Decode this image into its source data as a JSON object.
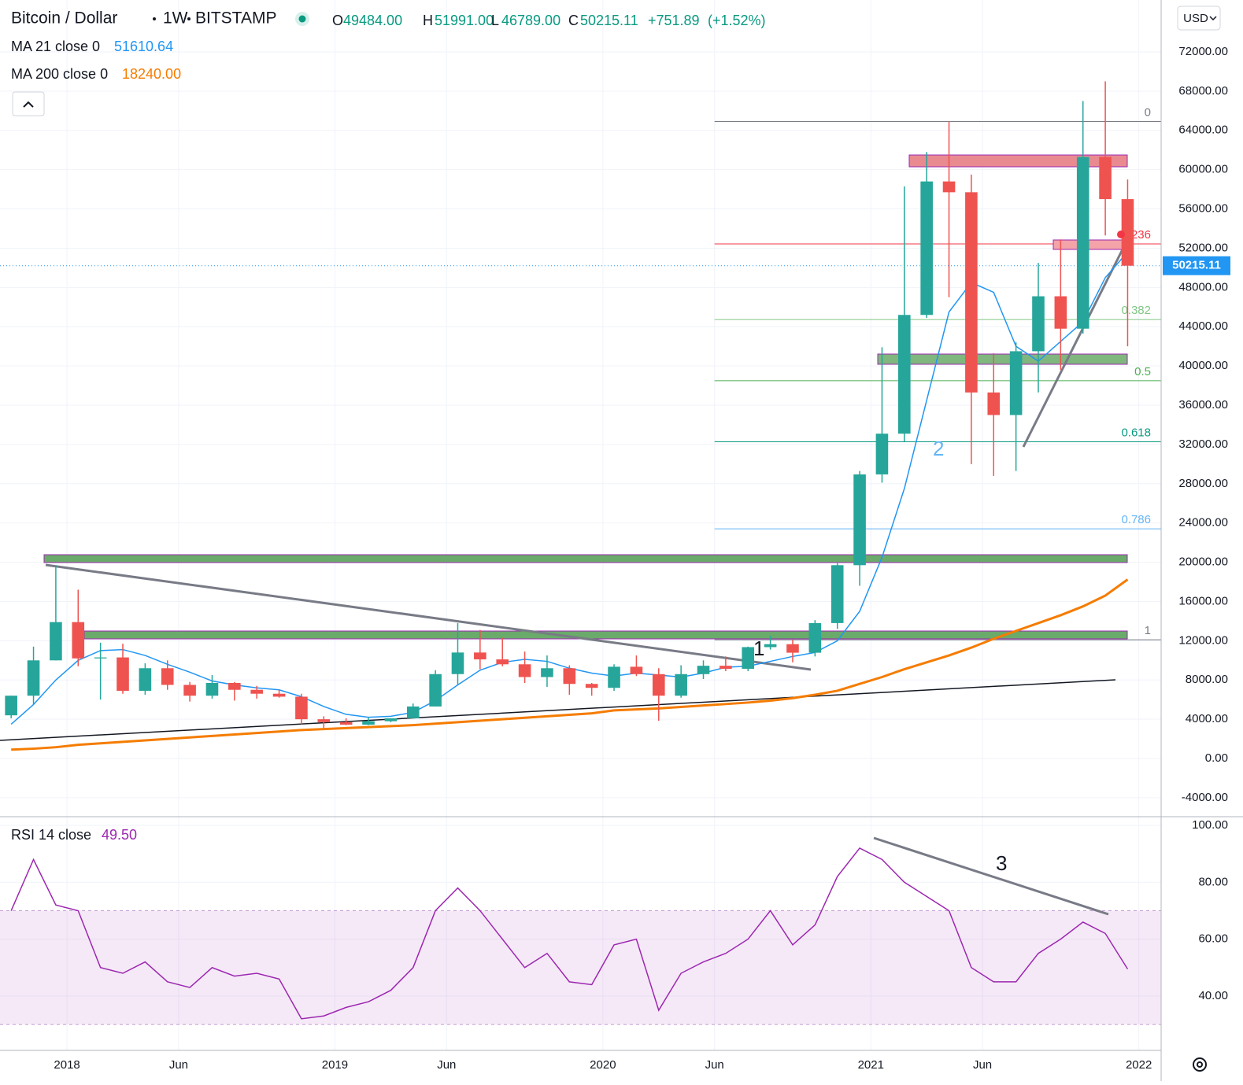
{
  "chart_data": {
    "type": "candlestick",
    "header": {
      "symbol": "Bitcoin / Dollar",
      "interval": "1W",
      "exchange": "BITSTAMP",
      "ohlc": [
        {
          "key": "O",
          "value": {
            "value": 49484,
            "label": "49484.00"
          }
        },
        {
          "key": "H",
          "value": {
            "value": 51991,
            "label": "51991.00"
          }
        },
        {
          "key": "L",
          "value": {
            "value": 46789,
            "label": "46789.00"
          }
        },
        {
          "key": "C",
          "value": {
            "value": 50215.11,
            "label": "50215.11"
          }
        }
      ],
      "change": {
        "value": 751.89,
        "label": "+751.89"
      },
      "change_pct": {
        "value": 1.52,
        "label": "(+1.52%)"
      }
    },
    "currency": "USD",
    "xlim": [
      "2017-10",
      "2022-02"
    ],
    "xticks": [
      {
        "value": "2018-01",
        "label": "2018"
      },
      {
        "value": "2018-06",
        "label": "Jun"
      },
      {
        "value": "2019-01",
        "label": "2019"
      },
      {
        "value": "2019-06",
        "label": "Jun"
      },
      {
        "value": "2020-01",
        "label": "2020"
      },
      {
        "value": "2020-06",
        "label": "Jun"
      },
      {
        "value": "2021-01",
        "label": "2021"
      },
      {
        "value": "2021-06",
        "label": "Jun"
      },
      {
        "value": "2022-01",
        "label": "2022"
      }
    ],
    "ylim": [
      -5930,
      77290
    ],
    "yticks": [
      {
        "value": -4000,
        "label": "-4000.00"
      },
      {
        "value": 0,
        "label": "0.00"
      },
      {
        "value": 4000,
        "label": "4000.00"
      },
      {
        "value": 8000,
        "label": "8000.00"
      },
      {
        "value": 12000,
        "label": "12000.00"
      },
      {
        "value": 16000,
        "label": "16000.00"
      },
      {
        "value": 20000,
        "label": "20000.00"
      },
      {
        "value": 24000,
        "label": "24000.00"
      },
      {
        "value": 28000,
        "label": "28000.00"
      },
      {
        "value": 32000,
        "label": "32000.00"
      },
      {
        "value": 36000,
        "label": "36000.00"
      },
      {
        "value": 40000,
        "label": "40000.00"
      },
      {
        "value": 44000,
        "label": "44000.00"
      },
      {
        "value": 48000,
        "label": "48000.00"
      },
      {
        "value": 52000,
        "label": "52000.00"
      },
      {
        "value": 56000,
        "label": "56000.00"
      },
      {
        "value": 60000,
        "label": "60000.00"
      },
      {
        "value": 64000,
        "label": "64000.00"
      },
      {
        "value": 68000,
        "label": "68000.00"
      },
      {
        "value": 72000,
        "label": "72000.00"
      }
    ],
    "grid": true,
    "up_color": "#26a69a",
    "down_color": "#ef5350",
    "candles": {
      "x": [
        "2017-10",
        "2017-11",
        "2017-12",
        "2018-01",
        "2018-02",
        "2018-03",
        "2018-04",
        "2018-05",
        "2018-06",
        "2018-07",
        "2018-08",
        "2018-09",
        "2018-10",
        "2018-11",
        "2018-12",
        "2019-01",
        "2019-02",
        "2019-03",
        "2019-04",
        "2019-05",
        "2019-06",
        "2019-07",
        "2019-08",
        "2019-09",
        "2019-10",
        "2019-11",
        "2019-12",
        "2020-01",
        "2020-02",
        "2020-03",
        "2020-04",
        "2020-05",
        "2020-06",
        "2020-07",
        "2020-08",
        "2020-09",
        "2020-10",
        "2020-11",
        "2020-12",
        "2021-01",
        "2021-02",
        "2021-03",
        "2021-04",
        "2021-05",
        "2021-06",
        "2021-07",
        "2021-08",
        "2021-09",
        "2021-10",
        "2021-11",
        "2021-12"
      ],
      "open": [
        4400,
        6400,
        10000,
        13900,
        10200,
        10300,
        6900,
        9200,
        7500,
        6400,
        7700,
        7000,
        6600,
        6300,
        4000,
        3700,
        3450,
        3800,
        4100,
        5300,
        8600,
        10800,
        10100,
        9600,
        8300,
        9200,
        7600,
        7200,
        9350,
        8600,
        6400,
        8600,
        9450,
        9140,
        11350,
        11650,
        10780,
        13800,
        19700,
        28950,
        33100,
        45200,
        58800,
        57700,
        37300,
        35000,
        41500,
        47100,
        43800,
        61300,
        57000
      ],
      "high": [
        6400,
        11400,
        19700,
        17200,
        11800,
        11700,
        9700,
        10000,
        7800,
        8500,
        7800,
        7400,
        7000,
        6600,
        4300,
        4100,
        4200,
        4100,
        5600,
        9000,
        13800,
        13100,
        12300,
        10900,
        10500,
        9500,
        7700,
        9600,
        10500,
        9200,
        9500,
        10000,
        10400,
        11400,
        12500,
        12100,
        14100,
        19900,
        29300,
        41900,
        58300,
        61800,
        64900,
        59500,
        41300,
        42400,
        50500,
        52900,
        67000,
        69000,
        59000
      ],
      "low": [
        4100,
        5500,
        10000,
        9400,
        6000,
        6600,
        6500,
        7000,
        5800,
        6100,
        5900,
        6100,
        6200,
        3500,
        3100,
        3400,
        3400,
        3700,
        4100,
        5300,
        7500,
        9100,
        9400,
        7700,
        7300,
        6500,
        6400,
        6900,
        8400,
        3850,
        6200,
        8100,
        8900,
        8900,
        11100,
        9800,
        10400,
        13200,
        17600,
        28100,
        32300,
        44900,
        47000,
        30000,
        28800,
        29300,
        37300,
        39600,
        43300,
        53300,
        42000
      ],
      "close": [
        6400,
        10000,
        13900,
        10200,
        10300,
        6900,
        9200,
        7500,
        6400,
        7700,
        7000,
        6600,
        6300,
        4000,
        3700,
        3450,
        3800,
        4100,
        5300,
        8600,
        10800,
        10100,
        9600,
        8300,
        9200,
        7600,
        7200,
        9350,
        8600,
        6400,
        8600,
        9450,
        9140,
        11350,
        11650,
        10780,
        13800,
        19700,
        28950,
        33100,
        45200,
        58800,
        57700,
        37300,
        35000,
        41500,
        47100,
        43800,
        61300,
        57000,
        50215.11
      ]
    },
    "indicators": [
      {
        "name": "MA 21 close 0",
        "value": {
          "value": 51610.64,
          "label": "51610.64"
        },
        "color": "#2196f3",
        "values": [
          3500,
          5500,
          8000,
          10000,
          11000,
          11100,
          10500,
          9600,
          8800,
          7900,
          7500,
          7200,
          7000,
          6300,
          5300,
          4500,
          4200,
          4300,
          4700,
          5900,
          7500,
          9000,
          9800,
          10100,
          9900,
          9200,
          8700,
          8400,
          8700,
          8500,
          8300,
          8700,
          9300,
          9400,
          9900,
          10400,
          10800,
          12000,
          15000,
          20500,
          27500,
          36500,
          45500,
          48500,
          47500,
          42000,
          40500,
          42500,
          44500,
          49000,
          51610.64
        ]
      },
      {
        "name": "MA 200 close 0",
        "value": {
          "value": 18240,
          "label": "18240.00"
        },
        "color": "#f57c00",
        "values": [
          900,
          1000,
          1150,
          1400,
          1550,
          1700,
          1850,
          2000,
          2150,
          2300,
          2450,
          2600,
          2750,
          2900,
          3000,
          3100,
          3200,
          3300,
          3400,
          3550,
          3700,
          3850,
          4000,
          4150,
          4300,
          4450,
          4600,
          4900,
          5000,
          5100,
          5250,
          5400,
          5550,
          5700,
          5900,
          6150,
          6500,
          6900,
          7600,
          8300,
          9100,
          9800,
          10500,
          11300,
          12200,
          13000,
          13800,
          14600,
          15500,
          16600,
          18240
        ]
      }
    ],
    "fibonacci": {
      "high": 64900,
      "low": 12100,
      "start": "2020-06",
      "levels": [
        {
          "level": 0,
          "color": "#787b86"
        },
        {
          "level": 0.236,
          "color": "#f23645"
        },
        {
          "level": 0.382,
          "color": "#81c784"
        },
        {
          "level": 0.5,
          "color": "#4caf50"
        },
        {
          "level": 0.618,
          "color": "#089981"
        },
        {
          "level": 0.786,
          "color": "#64b5f6"
        },
        {
          "level": 1,
          "color": "#787b86"
        }
      ]
    },
    "annotations": [
      "1",
      "2",
      "3"
    ],
    "rsi": {
      "name": "RSI 14 close",
      "value": {
        "value": 49.5,
        "label": "49.50"
      },
      "color": "#9c27b0",
      "ylim": [
        20.9,
        103.04
      ],
      "yticks": [
        {
          "value": 40,
          "label": "40.00"
        },
        {
          "value": 60,
          "label": "60.00"
        },
        {
          "value": 80,
          "label": "80.00"
        },
        {
          "value": 100,
          "label": "100.00"
        }
      ],
      "band": [
        30,
        70
      ],
      "values": [
        70,
        88,
        72,
        70,
        50,
        48,
        52,
        45,
        43,
        50,
        47,
        48,
        46,
        32,
        33,
        36,
        38,
        42,
        50,
        70,
        78,
        70,
        60,
        50,
        55,
        45,
        44,
        58,
        60,
        35,
        48,
        52,
        55,
        60,
        70,
        58,
        65,
        82,
        92,
        88,
        80,
        75,
        70,
        50,
        45,
        45,
        55,
        60,
        66,
        62,
        49.5
      ]
    }
  }
}
